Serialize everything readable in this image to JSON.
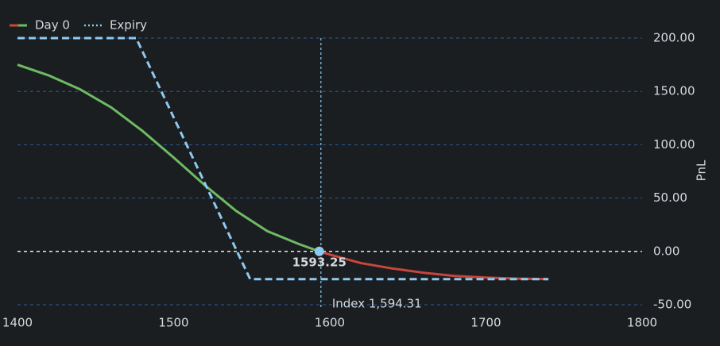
{
  "chart_data": {
    "type": "line",
    "x_label": null,
    "y_label": "PnL",
    "xlim": [
      1400,
      1800
    ],
    "xticks": [
      1400,
      1500,
      1600,
      1700,
      1800
    ],
    "ylim": [
      -50,
      200
    ],
    "yticks": [
      {
        "value": -50,
        "label": "-50.00"
      },
      {
        "value": 0,
        "label": "0.00"
      },
      {
        "value": 50,
        "label": "50.00"
      },
      {
        "value": 100,
        "label": "100.00"
      },
      {
        "value": 150,
        "label": "150.00"
      },
      {
        "value": 200,
        "label": "200.00"
      }
    ],
    "grid": true,
    "series": [
      {
        "name": "Day 0",
        "color": "#6dbb63",
        "negative_color": "#c9463d",
        "x": [
          1400,
          1420,
          1440,
          1460,
          1480,
          1500,
          1520,
          1540,
          1560,
          1580,
          1593.25,
          1600,
          1620,
          1640,
          1660,
          1680,
          1700,
          1720,
          1740
        ],
        "values": [
          175,
          165,
          152,
          135,
          113,
          88,
          62,
          38,
          19,
          7,
          0,
          -3,
          -11,
          -16,
          -20,
          -23,
          -24.5,
          -25.5,
          -26
        ]
      },
      {
        "name": "Expiry",
        "color": "#8ec9ef",
        "style": "dashed",
        "x": [
          1400,
          1476,
          1549,
          1740
        ],
        "values": [
          200,
          200,
          -26,
          -26
        ]
      }
    ],
    "marker": {
      "x": 1593.25,
      "y": 0,
      "color": "#8ec9ef"
    },
    "index_line": {
      "value": 1594.31,
      "label": "Index 1,594.31"
    }
  }
}
